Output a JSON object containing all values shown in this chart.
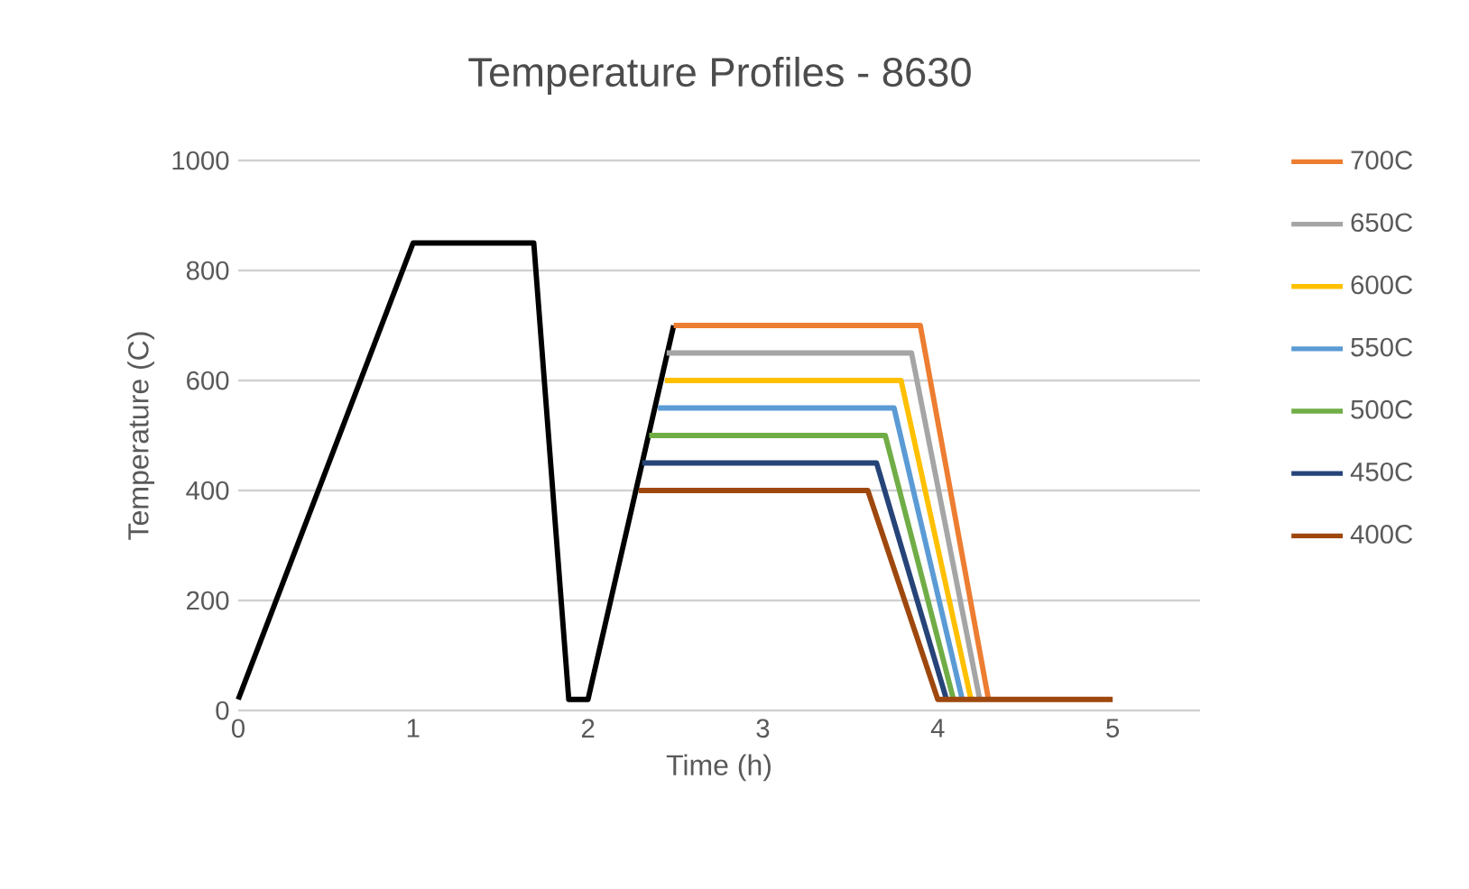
{
  "chart_data": {
    "type": "line",
    "title": "Temperature Profiles - 8630",
    "xlabel": "Time (h)",
    "ylabel": "Temperature (C)",
    "xlim": [
      0,
      5.5
    ],
    "ylim": [
      0,
      1000
    ],
    "xticks": [
      0,
      1,
      2,
      3,
      4,
      5
    ],
    "yticks": [
      0,
      200,
      400,
      600,
      800,
      1000
    ],
    "grid": "y",
    "legend": "right",
    "marker": "none",
    "line_style": "solid",
    "series": [
      {
        "color": "#000000",
        "x": [
          0,
          1,
          1.69,
          1.89,
          2.0,
          2.49
        ],
        "values": [
          20,
          850,
          850,
          20,
          20,
          700
        ]
      },
      {
        "name": "700C",
        "color": "#ed7d31",
        "x": [
          2.49,
          3.9,
          4.29
        ],
        "values": [
          700,
          700,
          20
        ]
      },
      {
        "name": "650C",
        "color": "#a5a5a5",
        "x": [
          2.45,
          3.85,
          4.24
        ],
        "values": [
          650,
          650,
          20
        ]
      },
      {
        "name": "600C",
        "color": "#ffc000",
        "x": [
          2.44,
          3.79,
          4.19
        ],
        "values": [
          600,
          600,
          20
        ]
      },
      {
        "name": "550C",
        "color": "#5b9bd5",
        "x": [
          2.4,
          3.75,
          4.14
        ],
        "values": [
          550,
          550,
          20
        ]
      },
      {
        "name": "500C",
        "color": "#70ad47",
        "x": [
          2.35,
          3.7,
          4.09
        ],
        "values": [
          500,
          500,
          20
        ]
      },
      {
        "name": "450C",
        "color": "#264478",
        "x": [
          2.31,
          3.65,
          4.05
        ],
        "values": [
          450,
          450,
          20
        ]
      },
      {
        "name": "400C",
        "color": "#9e480e",
        "x": [
          2.29,
          3.6,
          4.0,
          5.0
        ],
        "values": [
          400,
          400,
          20,
          20
        ]
      }
    ]
  }
}
